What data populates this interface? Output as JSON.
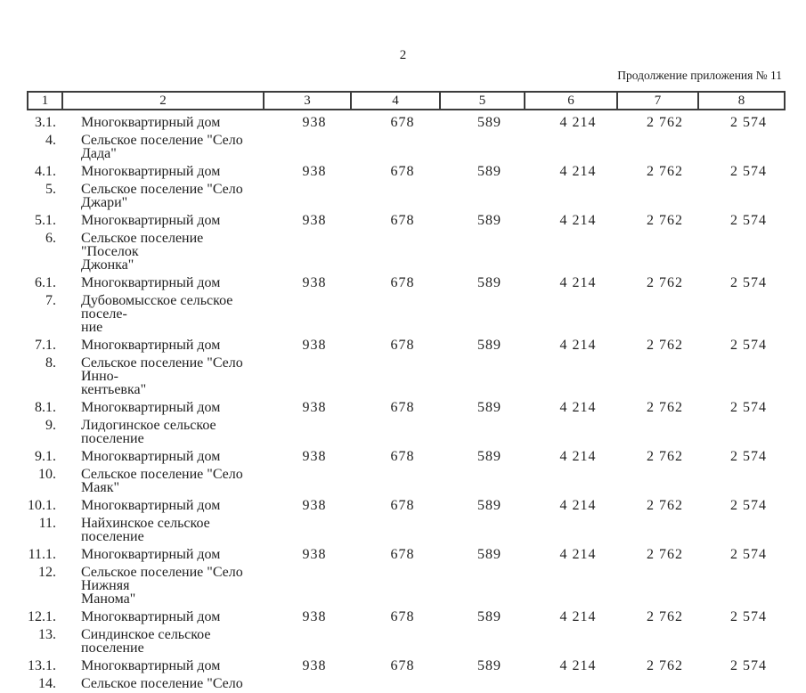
{
  "page": {
    "number": "2",
    "note": "Продолжение приложения № 11"
  },
  "table": {
    "column_numbers": [
      "1",
      "2",
      "3",
      "4",
      "5",
      "6",
      "7",
      "8"
    ],
    "rows": [
      {
        "num": "3.1.",
        "name": "Многоквартирный дом",
        "values": [
          "938",
          "678",
          "589",
          "4 214",
          "2 762",
          "2 574"
        ]
      },
      {
        "num": "4.",
        "name": "Сельское поселение \"Село Дада\"",
        "values": []
      },
      {
        "num": "4.1.",
        "name": "Многоквартирный дом",
        "values": [
          "938",
          "678",
          "589",
          "4 214",
          "2 762",
          "2 574"
        ]
      },
      {
        "num": "5.",
        "name": "Сельское поселение \"Село Джари\"",
        "values": []
      },
      {
        "num": "5.1.",
        "name": "Многоквартирный дом",
        "values": [
          "938",
          "678",
          "589",
          "4 214",
          "2 762",
          "2 574"
        ]
      },
      {
        "num": "6.",
        "name": "Сельское поселение \"Поселок\nДжонка\"",
        "values": []
      },
      {
        "num": "6.1.",
        "name": "Многоквартирный дом",
        "values": [
          "938",
          "678",
          "589",
          "4 214",
          "2 762",
          "2 574"
        ]
      },
      {
        "num": "7.",
        "name": "Дубовомысское сельское поселе-\nние",
        "values": []
      },
      {
        "num": "7.1.",
        "name": "Многоквартирный дом",
        "values": [
          "938",
          "678",
          "589",
          "4 214",
          "2 762",
          "2 574"
        ]
      },
      {
        "num": "8.",
        "name": "Сельское поселение \"Село Инно-\nкентьевка\"",
        "values": []
      },
      {
        "num": "8.1.",
        "name": "Многоквартирный дом",
        "values": [
          "938",
          "678",
          "589",
          "4 214",
          "2 762",
          "2 574"
        ]
      },
      {
        "num": "9.",
        "name": "Лидогинское сельское поселение",
        "values": []
      },
      {
        "num": "9.1.",
        "name": "Многоквартирный дом",
        "values": [
          "938",
          "678",
          "589",
          "4 214",
          "2 762",
          "2 574"
        ]
      },
      {
        "num": "10.",
        "name": "Сельское поселение \"Село Маяк\"",
        "values": []
      },
      {
        "num": "10.1.",
        "name": "Многоквартирный дом",
        "values": [
          "938",
          "678",
          "589",
          "4 214",
          "2 762",
          "2 574"
        ]
      },
      {
        "num": "11.",
        "name": "Найхинское сельское поселение",
        "values": []
      },
      {
        "num": "11.1.",
        "name": "Многоквартирный дом",
        "values": [
          "938",
          "678",
          "589",
          "4 214",
          "2 762",
          "2 574"
        ]
      },
      {
        "num": "12.",
        "name": "Сельское поселение \"Село Нижняя\nМанома\"",
        "values": []
      },
      {
        "num": "12.1.",
        "name": "Многоквартирный дом",
        "values": [
          "938",
          "678",
          "589",
          "4 214",
          "2 762",
          "2 574"
        ]
      },
      {
        "num": "13.",
        "name": "Синдинское сельское поселение",
        "values": []
      },
      {
        "num": "13.1.",
        "name": "Многоквартирный дом",
        "values": [
          "938",
          "678",
          "589",
          "4 214",
          "2 762",
          "2 574"
        ]
      },
      {
        "num": "14.",
        "name": "Сельское поселение \"Село",
        "values": []
      }
    ]
  },
  "colors": {
    "text": "#1f1f1f",
    "border": "#3c3c3c",
    "background": "#ffffff"
  }
}
